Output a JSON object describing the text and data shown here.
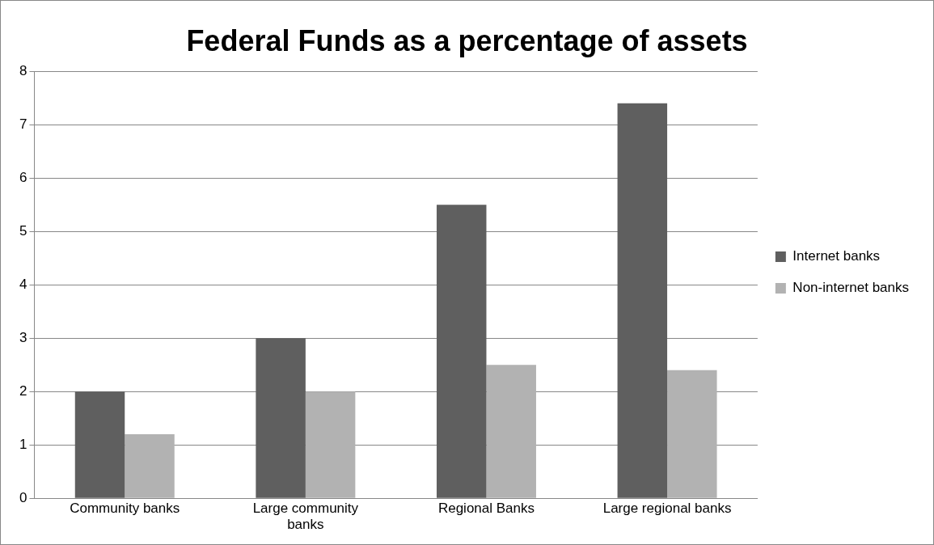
{
  "chart_data": {
    "type": "bar",
    "title": "Federal Funds as a percentage of assets",
    "categories": [
      "Community banks",
      "Large community banks",
      "Regional Banks",
      "Large regional banks"
    ],
    "series": [
      {
        "name": "Internet banks",
        "color": "#5f5f5f",
        "values": [
          2,
          3,
          5.5,
          7.4
        ]
      },
      {
        "name": "Non-internet banks",
        "color": "#b2b2b2",
        "values": [
          1.2,
          2,
          2.5,
          2.4
        ]
      }
    ],
    "ylim": [
      0,
      8
    ],
    "yticks": [
      0,
      1,
      2,
      3,
      4,
      5,
      6,
      7,
      8
    ],
    "grid": "y",
    "legend": "right"
  }
}
